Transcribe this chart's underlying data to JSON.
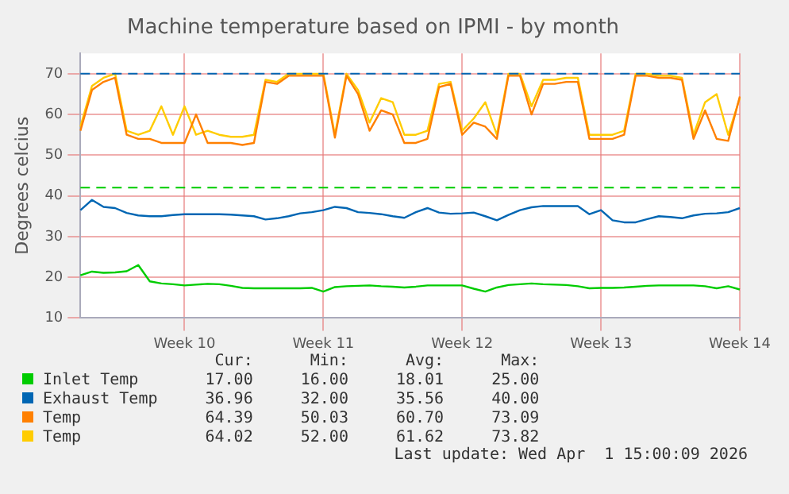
{
  "chart_data": {
    "type": "line",
    "title": "Machine temperature based on IPMI - by month",
    "ylabel": "Degrees celcius",
    "categories": [
      null,
      null,
      null,
      null,
      null,
      null,
      null,
      null,
      null,
      "Week 10",
      null,
      null,
      null,
      null,
      null,
      null,
      null,
      null,
      null,
      null,
      null,
      "Week 11",
      null,
      null,
      null,
      null,
      null,
      null,
      null,
      null,
      null,
      null,
      null,
      "Week 12",
      null,
      null,
      null,
      null,
      null,
      null,
      null,
      null,
      null,
      null,
      null,
      "Week 13",
      null,
      null,
      null,
      null,
      null,
      null,
      null,
      null,
      null,
      null,
      null,
      "Week 14"
    ],
    "ylim": [
      10,
      75
    ],
    "yticks": [
      10,
      20,
      30,
      40,
      50,
      60,
      70
    ],
    "grid": true,
    "legend": "bottom",
    "marker": "none",
    "line_style": "solid",
    "ref_lines": [
      {
        "axis": "y",
        "value": 70,
        "color": "#0066b3",
        "line_style": "dashed"
      },
      {
        "axis": "y",
        "value": 42,
        "color": "#00cc00",
        "line_style": "dashed"
      }
    ],
    "series": [
      {
        "name": "Inlet Temp",
        "color": "#00cc00",
        "values": [
          20.5,
          21.4,
          21.1,
          21.2,
          21.5,
          23,
          19,
          18.5,
          18.3,
          18,
          18.2,
          18.4,
          18.3,
          17.9,
          17.4,
          17.3,
          17.3,
          17.3,
          17.3,
          17.3,
          17.4,
          16.5,
          17.6,
          17.8,
          17.9,
          18,
          17.8,
          17.7,
          17.5,
          17.7,
          18,
          18,
          18,
          18,
          17.2,
          16.5,
          17.5,
          18.1,
          18.3,
          18.5,
          18.3,
          18.2,
          18.1,
          17.8,
          17.3,
          17.4,
          17.4,
          17.5,
          17.7,
          17.9,
          18,
          18,
          18,
          18,
          17.8,
          17.3,
          17.8,
          17
        ]
      },
      {
        "name": "Exhaust Temp",
        "color": "#0066b3",
        "values": [
          36.5,
          39,
          37.3,
          37,
          35.8,
          35.2,
          35,
          35,
          35.3,
          35.5,
          35.5,
          35.5,
          35.5,
          35.4,
          35.2,
          35,
          34.2,
          34.5,
          35,
          35.7,
          36,
          36.5,
          37.3,
          37,
          36,
          35.8,
          35.5,
          35,
          34.6,
          36,
          37,
          35.9,
          35.6,
          35.7,
          35.9,
          35,
          34,
          35.3,
          36.5,
          37.2,
          37.5,
          37.5,
          37.5,
          37.5,
          35.5,
          36.5,
          34,
          33.5,
          33.5,
          34.3,
          35,
          34.8,
          34.5,
          35.2,
          35.6,
          35.7,
          36,
          37
        ]
      },
      {
        "name": "Temp",
        "color": "#ff8000",
        "values": [
          56,
          66,
          68,
          69,
          55,
          54,
          54,
          53,
          53,
          53,
          60,
          53,
          53,
          53,
          52.5,
          53,
          68,
          67.5,
          69.5,
          69.5,
          69.5,
          69.5,
          54.3,
          69.5,
          65,
          56,
          61,
          60,
          53,
          53,
          54,
          66.7,
          67.5,
          55,
          58,
          57,
          54,
          69.5,
          69.5,
          60,
          67.5,
          67.5,
          68,
          68,
          54,
          54,
          54,
          55,
          69.5,
          69.5,
          69,
          69,
          68.5,
          54,
          61,
          54,
          53.5,
          64.4
        ]
      },
      {
        "name": "Temp",
        "color": "#ffcc00",
        "values": [
          57,
          67,
          69,
          70,
          56,
          55,
          56,
          62,
          55,
          62,
          55,
          56,
          55,
          54.5,
          54.5,
          55,
          68.5,
          68,
          70,
          70,
          70,
          70,
          55,
          70,
          66,
          58,
          64,
          63,
          55,
          55,
          56,
          67.5,
          68,
          56,
          59,
          63,
          55,
          70,
          70,
          62,
          68.5,
          68.5,
          69,
          69,
          55,
          55,
          55,
          56,
          70,
          70,
          69.5,
          69.5,
          69,
          55,
          63,
          65,
          55,
          64
        ]
      }
    ],
    "annotations": [
      "Cur:",
      "Min:",
      "Avg:",
      "Max:",
      "17.00",
      "16.00",
      "18.01",
      "25.00",
      "36.96",
      "32.00",
      "35.56",
      "40.00",
      "64.39",
      "50.03",
      "60.70",
      "73.09",
      "64.02",
      "52.00",
      "61.62",
      "73.82",
      "Last update: Wed Apr  1 15:00:09 2026"
    ]
  }
}
